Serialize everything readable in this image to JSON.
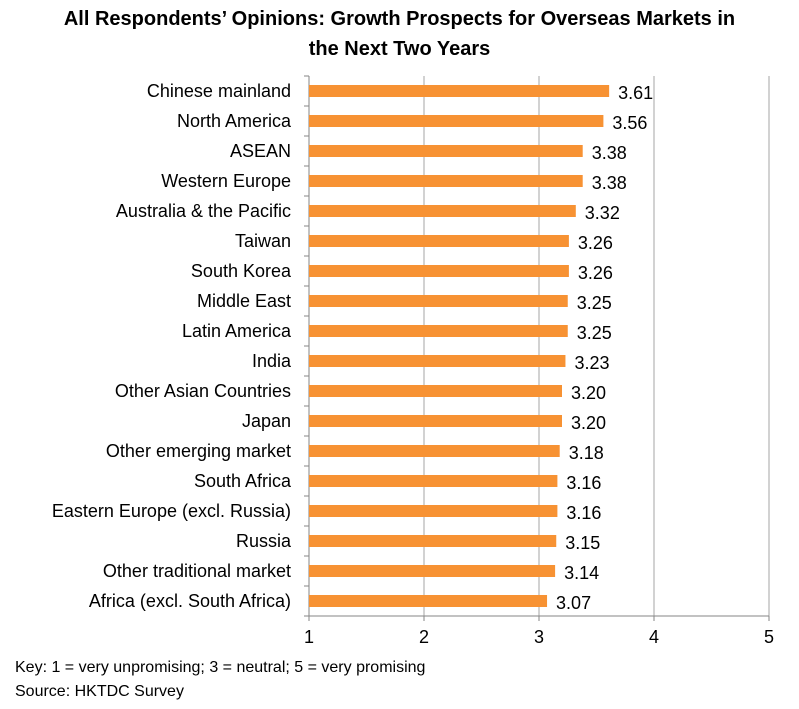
{
  "chart_data": {
    "type": "bar",
    "orientation": "horizontal",
    "title_lines": [
      "All Respondents’ Opinions: Growth Prospects for Overseas Markets in",
      "the Next Two Years"
    ],
    "categories": [
      "Chinese mainland",
      "North America",
      "ASEAN",
      "Western Europe",
      "Australia & the Pacific",
      "Taiwan",
      "South Korea",
      "Middle East",
      "Latin America",
      "India",
      "Other Asian Countries",
      "Japan",
      "Other emerging market",
      "South Africa",
      "Eastern Europe (excl. Russia)",
      "Russia",
      "Other traditional market",
      "Africa (excl. South Africa)"
    ],
    "values": [
      3.61,
      3.56,
      3.38,
      3.38,
      3.32,
      3.26,
      3.26,
      3.25,
      3.25,
      3.23,
      3.2,
      3.2,
      3.18,
      3.16,
      3.16,
      3.15,
      3.14,
      3.07
    ],
    "value_labels": [
      "3.61",
      "3.56",
      "3.38",
      "3.38",
      "3.32",
      "3.26",
      "3.26",
      "3.25",
      "3.25",
      "3.23",
      "3.20",
      "3.20",
      "3.18",
      "3.16",
      "3.16",
      "3.15",
      "3.14",
      "3.07"
    ],
    "xlim": [
      1,
      5
    ],
    "x_ticks": [
      "1",
      "2",
      "3",
      "4",
      "5"
    ],
    "bar_color": "#F79233",
    "grid": true
  },
  "footer": {
    "key": "Key: 1 = very unpromising; 3 = neutral;  5 = very promising",
    "source": "Source: HKTDC Survey"
  }
}
